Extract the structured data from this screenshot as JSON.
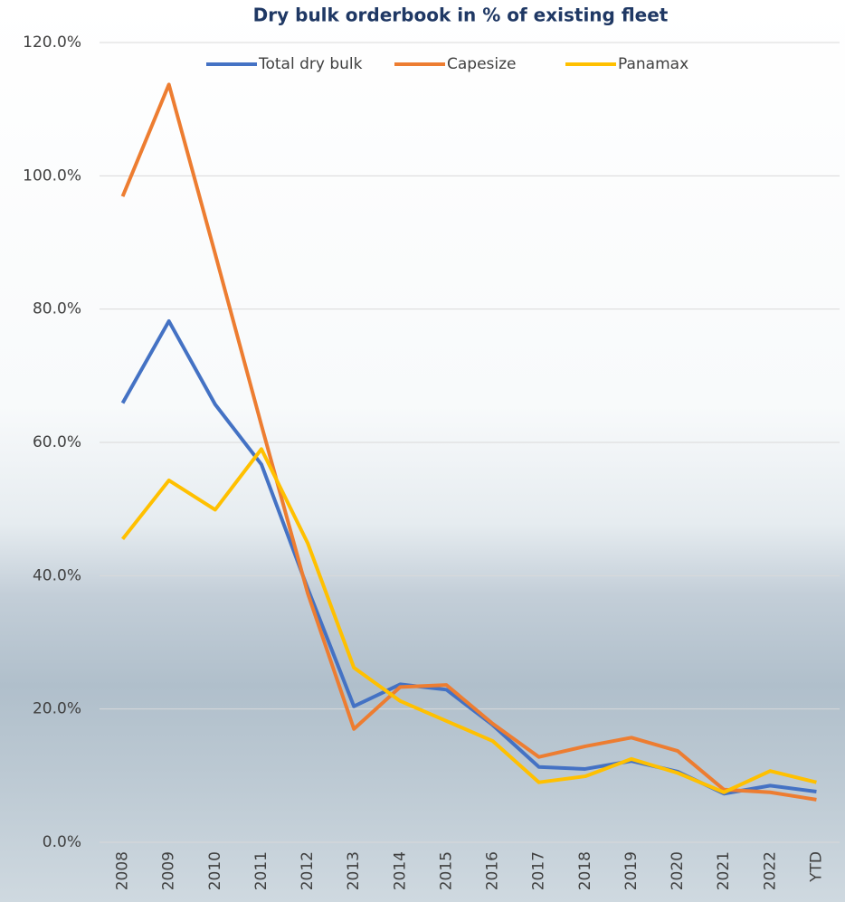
{
  "chart_data": {
    "type": "line",
    "title": "Dry bulk orderbook in % of existing fleet",
    "categories": [
      "2008",
      "2009",
      "2010",
      "2011",
      "2012",
      "2013",
      "2014",
      "2015",
      "2016",
      "2017",
      "2018",
      "2019",
      "2020",
      "2021",
      "2022",
      "YTD"
    ],
    "series": [
      {
        "name": "Total dry bulk",
        "color": "#4472c4",
        "values": [
          65.9,
          78.2,
          65.7,
          56.7,
          38.1,
          20.4,
          23.7,
          22.9,
          17.6,
          11.3,
          11.0,
          12.2,
          10.6,
          7.3,
          8.5,
          7.6
        ]
      },
      {
        "name": "Capesize",
        "color": "#ed7d31",
        "values": [
          96.9,
          113.7,
          88.3,
          62.6,
          37.4,
          17.0,
          23.3,
          23.6,
          17.8,
          12.8,
          14.4,
          15.7,
          13.7,
          7.9,
          7.5,
          6.4
        ]
      },
      {
        "name": "Panamax",
        "color": "#ffc000",
        "values": [
          45.5,
          54.3,
          49.9,
          59.0,
          44.9,
          26.2,
          21.2,
          18.2,
          15.2,
          9.0,
          9.9,
          12.5,
          10.4,
          7.5,
          10.7,
          9.0
        ]
      }
    ],
    "ylim": [
      0,
      120
    ],
    "yticks": [
      {
        "value": 0,
        "label": "0.0%"
      },
      {
        "value": 20,
        "label": "20.0%"
      },
      {
        "value": 40,
        "label": "40.0%"
      },
      {
        "value": 60,
        "label": "60.0%"
      },
      {
        "value": 80,
        "label": "80.0%"
      },
      {
        "value": 100,
        "label": "100.0%"
      },
      {
        "value": 120,
        "label": "120.0%"
      }
    ],
    "grid": true,
    "legend": "top"
  }
}
